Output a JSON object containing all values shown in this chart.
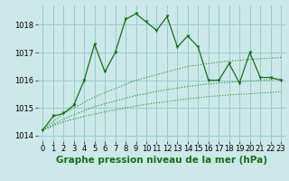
{
  "title": "Graphe pression niveau de la mer (hPa)",
  "bg_color": "#cce8e8",
  "grid_color": "#99cccc",
  "line_color_main": "#1a6e1a",
  "line_color_smooth": "#2d8c2d",
  "xlim": [
    -0.5,
    23.5
  ],
  "ylim": [
    1013.8,
    1018.7
  ],
  "yticks": [
    1014,
    1015,
    1016,
    1017,
    1018
  ],
  "xticks": [
    0,
    1,
    2,
    3,
    4,
    5,
    6,
    7,
    8,
    9,
    10,
    11,
    12,
    13,
    14,
    15,
    16,
    17,
    18,
    19,
    20,
    21,
    22,
    23
  ],
  "series1": [
    1014.2,
    1014.7,
    1014.8,
    1015.1,
    1016.0,
    1017.3,
    1016.3,
    1017.0,
    1018.2,
    1018.4,
    1018.1,
    1017.8,
    1018.3,
    1017.2,
    1017.6,
    1017.2,
    1016.0,
    1016.0,
    1016.6,
    1015.9,
    1017.0,
    1016.1,
    1016.1,
    1016.0
  ],
  "smooth1": [
    1014.2,
    1014.5,
    1014.8,
    1015.0,
    1015.2,
    1015.4,
    1015.55,
    1015.7,
    1015.85,
    1016.0,
    1016.1,
    1016.2,
    1016.3,
    1016.4,
    1016.5,
    1016.55,
    1016.6,
    1016.65,
    1016.7,
    1016.72,
    1016.75,
    1016.78,
    1016.8,
    1016.82
  ],
  "smooth2": [
    1014.2,
    1014.4,
    1014.6,
    1014.75,
    1014.9,
    1015.05,
    1015.15,
    1015.25,
    1015.35,
    1015.45,
    1015.52,
    1015.6,
    1015.66,
    1015.72,
    1015.77,
    1015.82,
    1015.87,
    1015.9,
    1015.93,
    1015.95,
    1015.97,
    1016.0,
    1016.02,
    1016.05
  ],
  "smooth3": [
    1014.2,
    1014.35,
    1014.5,
    1014.6,
    1014.7,
    1014.78,
    1014.86,
    1014.93,
    1015.0,
    1015.07,
    1015.13,
    1015.18,
    1015.23,
    1015.28,
    1015.33,
    1015.37,
    1015.41,
    1015.44,
    1015.47,
    1015.49,
    1015.51,
    1015.54,
    1015.56,
    1015.59
  ],
  "title_fontsize": 7.5,
  "tick_fontsize": 6,
  "ylabel_fontsize": 6,
  "figwidth": 3.2,
  "figheight": 2.0,
  "dpi": 100
}
